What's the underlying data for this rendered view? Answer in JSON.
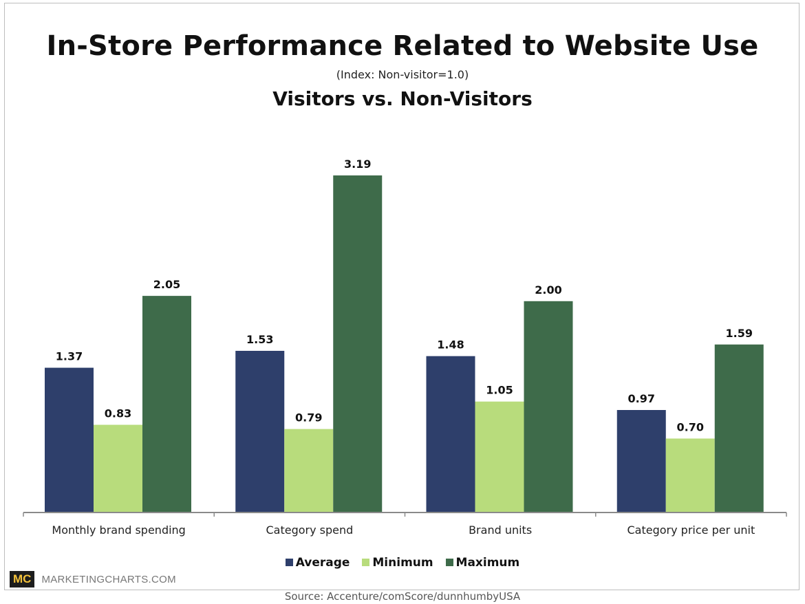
{
  "chart_data": {
    "type": "bar",
    "title": "In-Store Performance Related to Website Use",
    "subtitle": "(Index:  Non-visitor=1.0)",
    "subtitle2": "Visitors vs. Non-Visitors",
    "categories": [
      "Monthly brand spending",
      "Category spend",
      "Brand units",
      "Category price per unit"
    ],
    "series": [
      {
        "name": "Average",
        "color": "#2e3f6b",
        "values": [
          1.37,
          1.53,
          1.48,
          0.97
        ],
        "labels": [
          "1.37",
          "1.53",
          "1.48",
          "0.97"
        ]
      },
      {
        "name": "Minimum",
        "color": "#b8dc7c",
        "values": [
          0.83,
          0.79,
          1.05,
          0.7
        ],
        "labels": [
          "0.83",
          "0.79",
          "1.05",
          "0.70"
        ]
      },
      {
        "name": "Maximum",
        "color": "#3e6b4a",
        "values": [
          2.05,
          3.19,
          2.0,
          1.59
        ],
        "labels": [
          "2.05",
          "3.19",
          "2.00",
          "1.59"
        ]
      }
    ],
    "ylim": [
      0,
      3.19
    ],
    "grid": false,
    "legend_position": "bottom"
  },
  "branding": {
    "logo_mark": "MC",
    "logo_text": "MARKETINGCHARTS.COM"
  },
  "source": "Source: Accenture/comScore/dunnhumbyUSA"
}
